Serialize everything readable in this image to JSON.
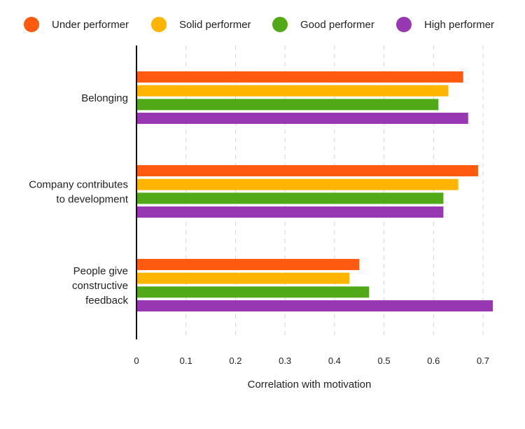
{
  "chart_data": {
    "type": "bar",
    "orientation": "horizontal",
    "title": "",
    "xlabel": "Correlation with motivation",
    "ylabel": "",
    "xlim": [
      0,
      0.7
    ],
    "xticks": [
      "0",
      "0.1",
      "0.2",
      "0.3",
      "0.4",
      "0.5",
      "0.6",
      "0.7"
    ],
    "grid": "vertical dashed",
    "legend_placement": "top",
    "categories": [
      [
        "Belonging"
      ],
      [
        "Company contributes",
        "to development"
      ],
      [
        "People give",
        "constructive",
        "feedback"
      ]
    ],
    "series": [
      {
        "name": "Under performer",
        "color": "#FF5A0F",
        "values": [
          0.66,
          0.69,
          0.45
        ]
      },
      {
        "name": "Solid performer",
        "color": "#FFB400",
        "values": [
          0.63,
          0.65,
          0.43
        ]
      },
      {
        "name": "Good performer",
        "color": "#52A917",
        "values": [
          0.61,
          0.62,
          0.47
        ]
      },
      {
        "name": "High performer",
        "color": "#9837B2",
        "values": [
          0.67,
          0.62,
          0.72
        ]
      }
    ]
  }
}
